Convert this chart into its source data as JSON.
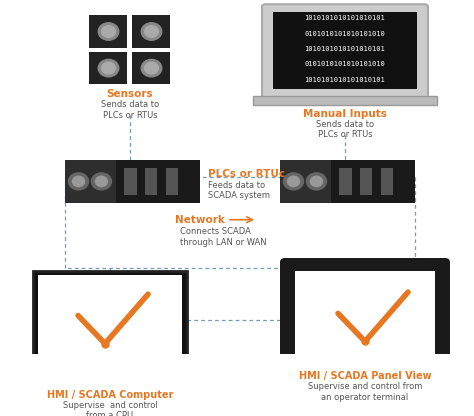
{
  "orange": "#E87722",
  "dark_gray": "#222222",
  "mid_gray": "#555555",
  "light_gray": "#999999",
  "white": "#ffffff",
  "black": "#000000",
  "text_color": "#555555",
  "line_color": "#7799bb",
  "binary_lines": [
    "1010101010101010101",
    "0101010101010101010",
    "1010101010101010101",
    "0101010101010101010",
    "1010101010101010101"
  ],
  "labels": {
    "sensors_title": "Sensors",
    "sensors_sub": "Sends data to\nPLCs or RTUs",
    "manual_title": "Manual Inputs",
    "manual_sub": "Sends data to\nPLCs or RTUs",
    "plc_title": "PLCs or RTUc",
    "plc_sub": "Feeds data to\nSCADA system",
    "network_title": "Network",
    "network_sub": "Connects SCADA\nthrough LAN or WAN",
    "hmi_comp_title": "HMI / SCADA Computer",
    "hmi_comp_sub": "Supervise  and control\nfrom a CPU",
    "hmi_panel_title": "HMI / SCADA Panel View",
    "hmi_panel_sub": "Supervise and control from\nan operator terminal"
  }
}
